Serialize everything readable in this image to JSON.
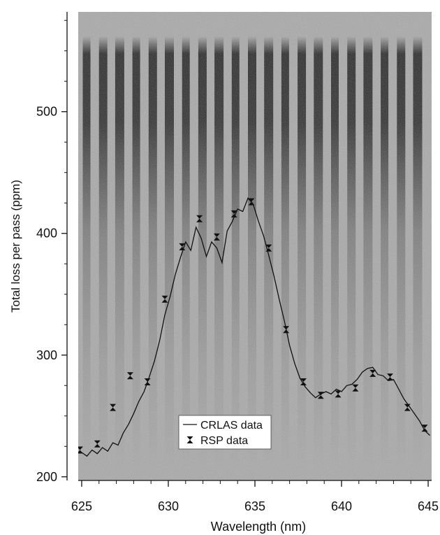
{
  "chart_data": {
    "type": "line",
    "xlabel": "Wavelength (nm)",
    "ylabel": "Total loss per pass (ppm)",
    "xlim": [
      624.8,
      645.2
    ],
    "ylim": [
      197,
      582
    ],
    "xticks": [
      625,
      630,
      635,
      640,
      645
    ],
    "yticks": [
      200,
      300,
      400,
      500
    ],
    "legend": {
      "position": "lower-center"
    },
    "background": "grayscale image of spectrum with dark vertical bands",
    "series": [
      {
        "name": "CRLAS data",
        "style": "line",
        "color": "#111111",
        "x": [
          625.0,
          625.3,
          625.6,
          625.9,
          626.2,
          626.5,
          626.8,
          627.1,
          627.4,
          627.7,
          628.0,
          628.3,
          628.6,
          628.9,
          629.2,
          629.5,
          629.8,
          630.1,
          630.4,
          630.7,
          631.0,
          631.3,
          631.6,
          631.9,
          632.2,
          632.5,
          632.8,
          633.1,
          633.4,
          633.7,
          634.0,
          634.3,
          634.6,
          634.9,
          635.2,
          635.5,
          635.8,
          636.1,
          636.4,
          636.7,
          637.0,
          637.3,
          637.6,
          637.9,
          638.2,
          638.5,
          638.8,
          639.1,
          639.4,
          639.7,
          640.0,
          640.3,
          640.6,
          640.9,
          641.2,
          641.5,
          641.8,
          642.1,
          642.4,
          642.7,
          643.0,
          643.3,
          643.6,
          643.9,
          644.2,
          644.5,
          644.8,
          645.1
        ],
        "y": [
          220,
          217,
          222,
          219,
          224,
          221,
          228,
          226,
          236,
          243,
          252,
          262,
          270,
          282,
          295,
          312,
          333,
          348,
          366,
          380,
          393,
          386,
          405,
          396,
          381,
          393,
          388,
          376,
          402,
          410,
          420,
          418,
          429,
          424,
          410,
          398,
          382,
          365,
          346,
          328,
          308,
          293,
          281,
          274,
          269,
          265,
          268,
          270,
          268,
          272,
          270,
          275,
          276,
          280,
          286,
          289,
          290,
          284,
          283,
          279,
          280,
          272,
          264,
          258,
          252,
          246,
          238,
          234
        ]
      },
      {
        "name": "RSP data",
        "style": "markers",
        "color": "#111111",
        "x": [
          624.9,
          625.9,
          626.8,
          627.8,
          628.8,
          629.8,
          630.8,
          631.8,
          632.8,
          633.8,
          634.8,
          635.8,
          636.8,
          637.8,
          638.8,
          639.8,
          640.8,
          641.8,
          642.8,
          643.8,
          644.8
        ],
        "y": [
          222,
          227,
          257,
          283,
          278,
          346,
          389,
          412,
          397,
          416,
          426,
          388,
          321,
          278,
          267,
          268,
          273,
          285,
          282,
          257,
          240
        ]
      }
    ]
  }
}
